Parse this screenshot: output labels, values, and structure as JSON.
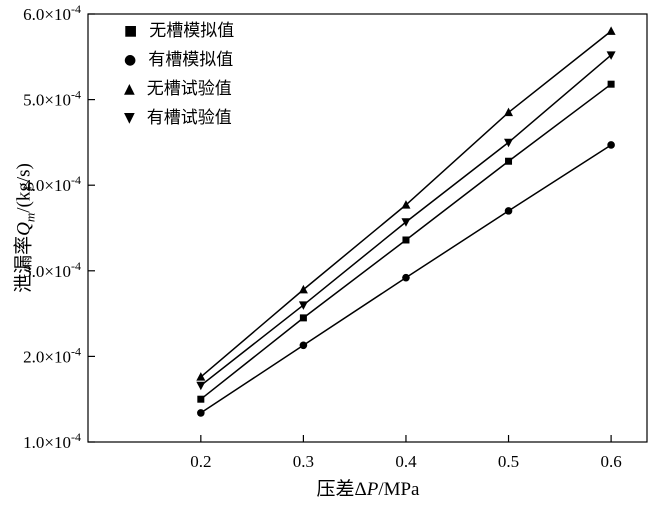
{
  "chart_data": {
    "type": "line",
    "x": [
      0.2,
      0.3,
      0.4,
      0.5,
      0.6
    ],
    "series": [
      {
        "name": "无槽模拟值",
        "marker": "square",
        "values": [
          0.00015,
          0.000245,
          0.000336,
          0.000428,
          0.000518
        ]
      },
      {
        "name": "有槽模拟值",
        "marker": "circle",
        "values": [
          0.000134,
          0.000213,
          0.000292,
          0.00037,
          0.000447
        ]
      },
      {
        "name": "无槽试验值",
        "marker": "triangle-up",
        "values": [
          0.000176,
          0.000278,
          0.000377,
          0.000485,
          0.00058
        ]
      },
      {
        "name": "有槽试验值",
        "marker": "triangle-down",
        "values": [
          0.000166,
          0.00026,
          0.000357,
          0.00045,
          0.000552
        ]
      }
    ],
    "xlabel": "压差ΔP/MPa",
    "ylabel": "泄漏率Qm/(kg/s)",
    "xlabel_parts": {
      "prefix": "压差Δ",
      "var": "P",
      "suffix": "/MPa"
    },
    "ylabel_parts": {
      "prefix": "泄漏率",
      "var": "Q",
      "sub": "m",
      "suffix": "/(kg/s)"
    },
    "xlim": [
      0.09,
      0.635
    ],
    "ylim": [
      0.0001,
      0.0006
    ],
    "xticks": [
      0.2,
      0.3,
      0.4,
      0.5,
      0.6
    ],
    "yticks": [
      0.0001,
      0.0002,
      0.0003,
      0.0004,
      0.0005,
      0.0006
    ],
    "xtick_labels": [
      "0.2",
      "0.3",
      "0.4",
      "0.5",
      "0.6"
    ],
    "ytick_labels": [
      {
        "base": "1.0×10",
        "exp": "-4"
      },
      {
        "base": "2.0×10",
        "exp": "-4"
      },
      {
        "base": "3.0×10",
        "exp": "-4"
      },
      {
        "base": "4.0×10",
        "exp": "-4"
      },
      {
        "base": "5.0×10",
        "exp": "-4"
      },
      {
        "base": "6.0×10",
        "exp": "-4"
      }
    ],
    "grid": false,
    "legend_position": "top-left",
    "line_color": "#000000",
    "background_color": "#ffffff"
  },
  "legend": {
    "marker_glyphs": [
      "■",
      "●",
      "▲",
      "▼"
    ]
  }
}
